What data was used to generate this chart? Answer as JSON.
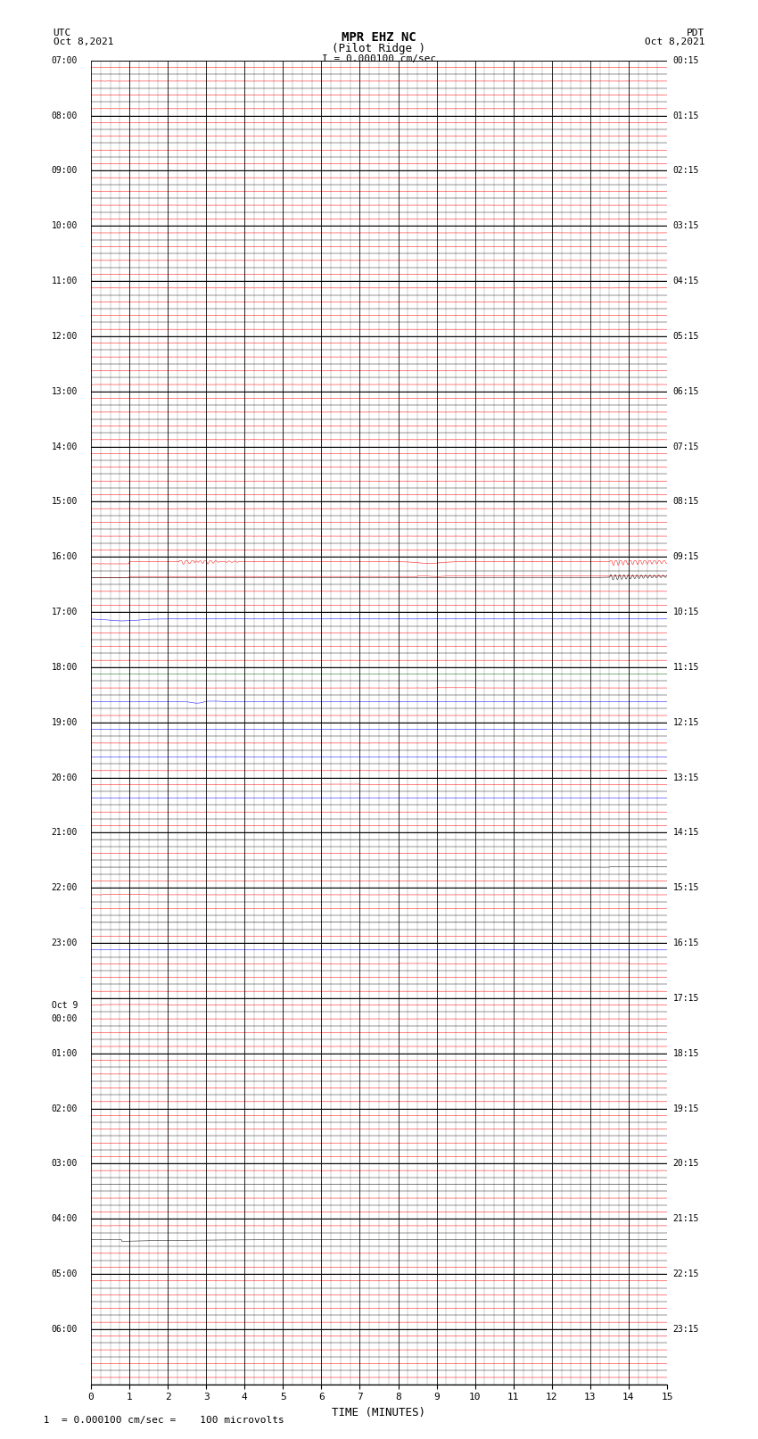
{
  "title_line1": "MPR EHZ NC",
  "title_line2": "(Pilot Ridge )",
  "title_line3": "I = 0.000100 cm/sec",
  "left_header_line1": "UTC",
  "left_header_line2": "Oct 8,2021",
  "right_header_line1": "PDT",
  "right_header_line2": "Oct 8,2021",
  "xlabel": "TIME (MINUTES)",
  "footer": " 1  = 0.000100 cm/sec =    100 microvolts",
  "utc_labels": [
    "07:00",
    "08:00",
    "09:00",
    "10:00",
    "11:00",
    "12:00",
    "13:00",
    "14:00",
    "15:00",
    "16:00",
    "17:00",
    "18:00",
    "19:00",
    "20:00",
    "21:00",
    "22:00",
    "23:00",
    "Oct 9\n00:00",
    "01:00",
    "02:00",
    "03:00",
    "04:00",
    "05:00",
    "06:00"
  ],
  "pdt_labels": [
    "00:15",
    "01:15",
    "02:15",
    "03:15",
    "04:15",
    "05:15",
    "06:15",
    "07:15",
    "08:15",
    "09:15",
    "10:15",
    "11:15",
    "12:15",
    "13:15",
    "14:15",
    "15:15",
    "16:15",
    "17:15",
    "18:15",
    "19:15",
    "20:15",
    "21:15",
    "22:15",
    "23:15"
  ],
  "num_rows": 24,
  "sub_rows": 4,
  "x_min": 0,
  "x_max": 15,
  "x_ticks": [
    0,
    1,
    2,
    3,
    4,
    5,
    6,
    7,
    8,
    9,
    10,
    11,
    12,
    13,
    14,
    15
  ],
  "bg_color": "#ffffff",
  "grid_color": "#000000"
}
